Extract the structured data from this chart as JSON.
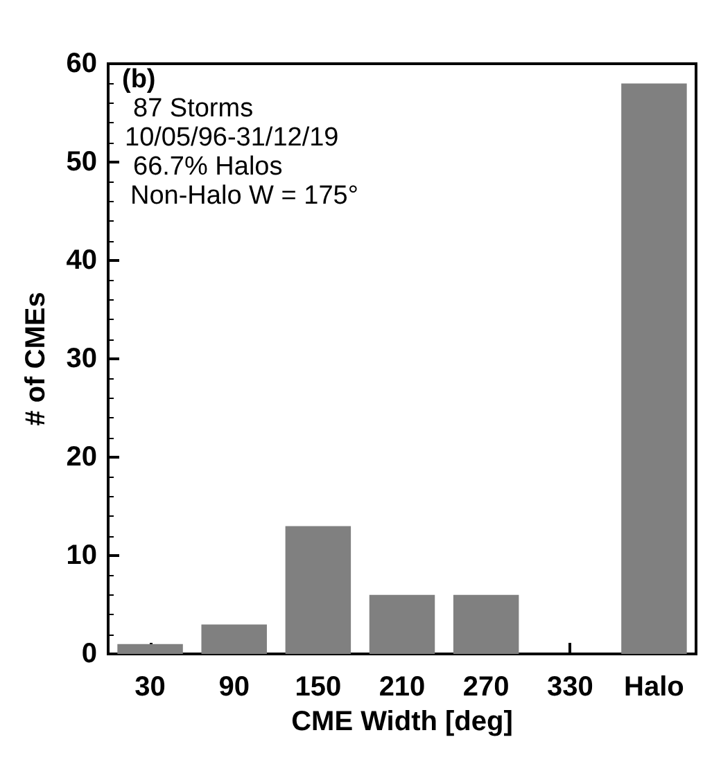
{
  "chart_data": {
    "type": "bar",
    "xlabel": "CME Width [deg]",
    "ylabel": "# of CMEs",
    "categories": [
      "30",
      "90",
      "150",
      "210",
      "270",
      "330",
      "Halo"
    ],
    "values": [
      1,
      3,
      13,
      6,
      6,
      null,
      58
    ],
    "color": "#808080",
    "ylim": [
      0,
      60
    ],
    "yticks": [
      0,
      10,
      20,
      30,
      40,
      50,
      60
    ],
    "grid": false,
    "annotations": [
      "(b)",
      "87 Storms",
      "10/05/96-31/12/19",
      "66.7% Halos",
      "Non-Halo W = 175°"
    ]
  }
}
